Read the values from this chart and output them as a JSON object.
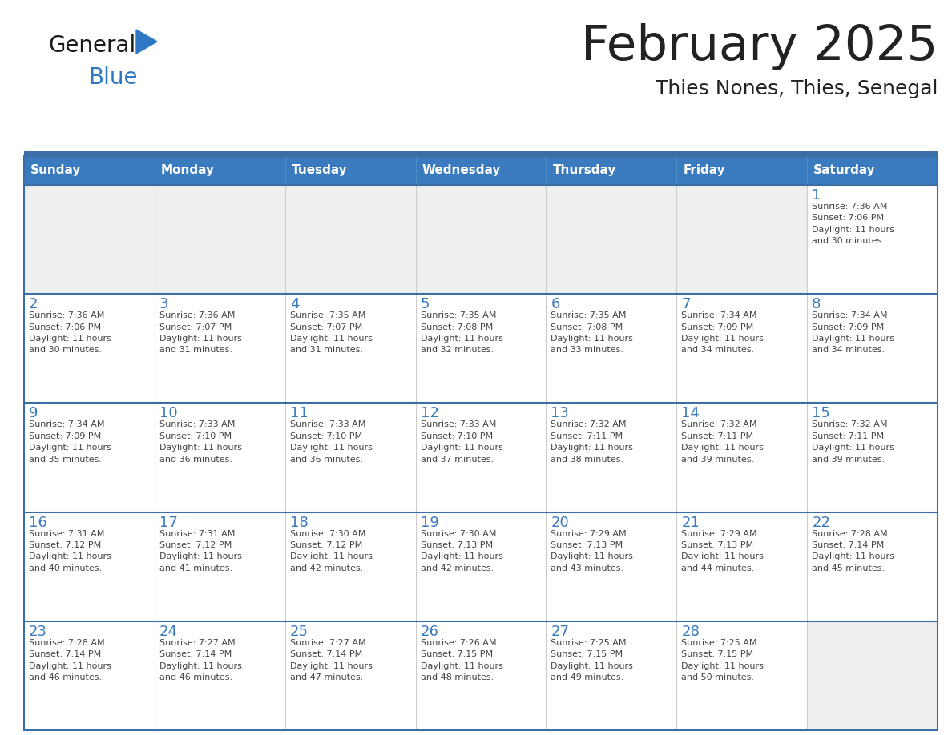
{
  "title": "February 2025",
  "subtitle": "Thies Nones, Thies, Senegal",
  "days_of_week": [
    "Sunday",
    "Monday",
    "Tuesday",
    "Wednesday",
    "Thursday",
    "Friday",
    "Saturday"
  ],
  "header_bg": "#3A7ABF",
  "header_text_color": "#FFFFFF",
  "cell_bg_white": "#FFFFFF",
  "cell_bg_gray": "#EFEFEF",
  "divider_color": "#3A6EA5",
  "day_num_color": "#3A7ABF",
  "text_color": "#444444",
  "title_color": "#222222",
  "logo_general_color": "#1A1A1A",
  "logo_blue_color": "#2E78C5",
  "weeks": [
    [
      {
        "day": null,
        "info": null
      },
      {
        "day": null,
        "info": null
      },
      {
        "day": null,
        "info": null
      },
      {
        "day": null,
        "info": null
      },
      {
        "day": null,
        "info": null
      },
      {
        "day": null,
        "info": null
      },
      {
        "day": 1,
        "info": "Sunrise: 7:36 AM\nSunset: 7:06 PM\nDaylight: 11 hours\nand 30 minutes."
      }
    ],
    [
      {
        "day": 2,
        "info": "Sunrise: 7:36 AM\nSunset: 7:06 PM\nDaylight: 11 hours\nand 30 minutes."
      },
      {
        "day": 3,
        "info": "Sunrise: 7:36 AM\nSunset: 7:07 PM\nDaylight: 11 hours\nand 31 minutes."
      },
      {
        "day": 4,
        "info": "Sunrise: 7:35 AM\nSunset: 7:07 PM\nDaylight: 11 hours\nand 31 minutes."
      },
      {
        "day": 5,
        "info": "Sunrise: 7:35 AM\nSunset: 7:08 PM\nDaylight: 11 hours\nand 32 minutes."
      },
      {
        "day": 6,
        "info": "Sunrise: 7:35 AM\nSunset: 7:08 PM\nDaylight: 11 hours\nand 33 minutes."
      },
      {
        "day": 7,
        "info": "Sunrise: 7:34 AM\nSunset: 7:09 PM\nDaylight: 11 hours\nand 34 minutes."
      },
      {
        "day": 8,
        "info": "Sunrise: 7:34 AM\nSunset: 7:09 PM\nDaylight: 11 hours\nand 34 minutes."
      }
    ],
    [
      {
        "day": 9,
        "info": "Sunrise: 7:34 AM\nSunset: 7:09 PM\nDaylight: 11 hours\nand 35 minutes."
      },
      {
        "day": 10,
        "info": "Sunrise: 7:33 AM\nSunset: 7:10 PM\nDaylight: 11 hours\nand 36 minutes."
      },
      {
        "day": 11,
        "info": "Sunrise: 7:33 AM\nSunset: 7:10 PM\nDaylight: 11 hours\nand 36 minutes."
      },
      {
        "day": 12,
        "info": "Sunrise: 7:33 AM\nSunset: 7:10 PM\nDaylight: 11 hours\nand 37 minutes."
      },
      {
        "day": 13,
        "info": "Sunrise: 7:32 AM\nSunset: 7:11 PM\nDaylight: 11 hours\nand 38 minutes."
      },
      {
        "day": 14,
        "info": "Sunrise: 7:32 AM\nSunset: 7:11 PM\nDaylight: 11 hours\nand 39 minutes."
      },
      {
        "day": 15,
        "info": "Sunrise: 7:32 AM\nSunset: 7:11 PM\nDaylight: 11 hours\nand 39 minutes."
      }
    ],
    [
      {
        "day": 16,
        "info": "Sunrise: 7:31 AM\nSunset: 7:12 PM\nDaylight: 11 hours\nand 40 minutes."
      },
      {
        "day": 17,
        "info": "Sunrise: 7:31 AM\nSunset: 7:12 PM\nDaylight: 11 hours\nand 41 minutes."
      },
      {
        "day": 18,
        "info": "Sunrise: 7:30 AM\nSunset: 7:12 PM\nDaylight: 11 hours\nand 42 minutes."
      },
      {
        "day": 19,
        "info": "Sunrise: 7:30 AM\nSunset: 7:13 PM\nDaylight: 11 hours\nand 42 minutes."
      },
      {
        "day": 20,
        "info": "Sunrise: 7:29 AM\nSunset: 7:13 PM\nDaylight: 11 hours\nand 43 minutes."
      },
      {
        "day": 21,
        "info": "Sunrise: 7:29 AM\nSunset: 7:13 PM\nDaylight: 11 hours\nand 44 minutes."
      },
      {
        "day": 22,
        "info": "Sunrise: 7:28 AM\nSunset: 7:14 PM\nDaylight: 11 hours\nand 45 minutes."
      }
    ],
    [
      {
        "day": 23,
        "info": "Sunrise: 7:28 AM\nSunset: 7:14 PM\nDaylight: 11 hours\nand 46 minutes."
      },
      {
        "day": 24,
        "info": "Sunrise: 7:27 AM\nSunset: 7:14 PM\nDaylight: 11 hours\nand 46 minutes."
      },
      {
        "day": 25,
        "info": "Sunrise: 7:27 AM\nSunset: 7:14 PM\nDaylight: 11 hours\nand 47 minutes."
      },
      {
        "day": 26,
        "info": "Sunrise: 7:26 AM\nSunset: 7:15 PM\nDaylight: 11 hours\nand 48 minutes."
      },
      {
        "day": 27,
        "info": "Sunrise: 7:25 AM\nSunset: 7:15 PM\nDaylight: 11 hours\nand 49 minutes."
      },
      {
        "day": 28,
        "info": "Sunrise: 7:25 AM\nSunset: 7:15 PM\nDaylight: 11 hours\nand 50 minutes."
      },
      {
        "day": null,
        "info": null
      }
    ]
  ]
}
